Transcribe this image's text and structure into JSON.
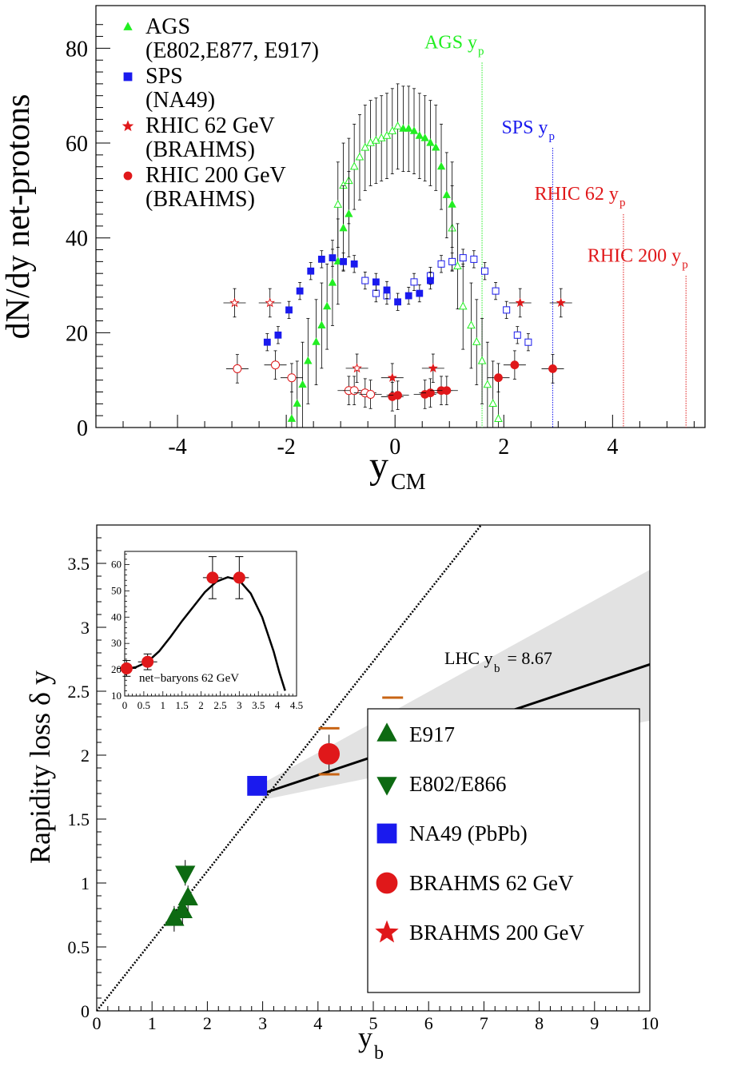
{
  "chart_data": [
    {
      "type": "scatter",
      "title": "",
      "xlabel": "y",
      "xlabel_sub": "CM",
      "ylabel": "dN/dy net-protons",
      "xlim": [
        -5.5,
        5.7
      ],
      "ylim": [
        0,
        89
      ],
      "xticks": [
        -4,
        -2,
        0,
        2,
        4
      ],
      "yticks": [
        0,
        20,
        40,
        60,
        80
      ],
      "grid": false,
      "legend_position": "top-left",
      "legend": [
        {
          "label": "AGS",
          "sub_label": "(E802,E877, E917)",
          "color": "#22ee22",
          "marker": "triangle"
        },
        {
          "label": "SPS",
          "sub_label": "(NA49)",
          "color": "#1a1aee",
          "marker": "square"
        },
        {
          "label": "RHIC 62 GeV",
          "sub_label": "(BRAHMS)",
          "color": "#e0181a",
          "marker": "star"
        },
        {
          "label": "RHIC 200 GeV",
          "sub_label": "(BRAHMS)",
          "color": "#e0181a",
          "marker": "circle"
        }
      ],
      "beam_lines": [
        {
          "label": "AGS y",
          "sub": "p",
          "x": 1.6,
          "color": "#22ee22",
          "label_y": 80
        },
        {
          "label": "SPS y",
          "sub": "p",
          "x": 2.9,
          "color": "#1a1aee",
          "label_y": 62
        },
        {
          "label": "RHIC 62 y",
          "sub": "p",
          "x": 4.2,
          "color": "#e0181a",
          "label_y": 48
        },
        {
          "label": "RHIC 200 y",
          "sub": "p",
          "x": 5.35,
          "color": "#e0181a",
          "label_y": 35
        }
      ],
      "series": [
        {
          "name": "AGS",
          "color": "#22ee22",
          "marker": "triangle",
          "filled": [
            [
              -1.9,
              1.8
            ],
            [
              -1.8,
              5
            ],
            [
              -1.7,
              9
            ],
            [
              -1.6,
              14
            ],
            [
              -1.45,
              18
            ],
            [
              -1.35,
              21.5
            ],
            [
              -1.25,
              25.5
            ],
            [
              -1.15,
              30.5
            ],
            [
              -1.05,
              35
            ],
            [
              -0.95,
              42
            ],
            [
              -0.85,
              45
            ],
            [
              0.15,
              63
            ],
            [
              0.25,
              63
            ],
            [
              0.35,
              62.5
            ],
            [
              0.45,
              61.5
            ],
            [
              0.55,
              61
            ],
            [
              0.65,
              60
            ],
            [
              0.75,
              59
            ],
            [
              0.85,
              55
            ],
            [
              0.95,
              49
            ],
            [
              1.05,
              47
            ]
          ],
          "open": [
            [
              -1.05,
              47
            ],
            [
              -0.95,
              51
            ],
            [
              -0.85,
              52
            ],
            [
              -0.75,
              55
            ],
            [
              -0.65,
              57
            ],
            [
              -0.55,
              59
            ],
            [
              -0.45,
              60
            ],
            [
              -0.35,
              60.5
            ],
            [
              -0.25,
              61
            ],
            [
              -0.15,
              61.5
            ],
            [
              -0.05,
              62.5
            ],
            [
              0.05,
              63.5
            ],
            [
              1.05,
              42
            ],
            [
              1.15,
              34
            ],
            [
              1.25,
              25.5
            ],
            [
              1.4,
              21.5
            ],
            [
              1.5,
              18
            ],
            [
              1.6,
              14
            ],
            [
              1.7,
              9
            ],
            [
              1.8,
              5
            ],
            [
              1.9,
              1.8
            ]
          ],
          "err": 9
        },
        {
          "name": "SPS",
          "color": "#1a1aee",
          "marker": "square",
          "filled": [
            [
              -2.35,
              18
            ],
            [
              -2.15,
              19.5
            ],
            [
              -1.95,
              24.8
            ],
            [
              -1.75,
              28.8
            ],
            [
              -1.55,
              33
            ],
            [
              -1.35,
              35.5
            ],
            [
              -1.15,
              35.8
            ],
            [
              -0.95,
              35
            ],
            [
              -0.75,
              34.5
            ],
            [
              -0.35,
              30.7
            ],
            [
              -0.15,
              29
            ],
            [
              0.05,
              26.5
            ],
            [
              0.25,
              27.8
            ],
            [
              0.45,
              28.3
            ],
            [
              0.65,
              31
            ]
          ],
          "open": [
            [
              -0.55,
              31
            ],
            [
              -0.35,
              28.3
            ],
            [
              -0.15,
              27.8
            ],
            [
              0.35,
              30.7
            ],
            [
              0.65,
              32
            ],
            [
              0.85,
              34.5
            ],
            [
              1.05,
              35
            ],
            [
              1.25,
              35.8
            ],
            [
              1.45,
              35.5
            ],
            [
              1.65,
              33
            ],
            [
              1.85,
              28.8
            ],
            [
              2.05,
              24.8
            ],
            [
              2.25,
              19.5
            ],
            [
              2.45,
              18
            ]
          ],
          "err": 1.8
        },
        {
          "name": "RHIC 62 GeV",
          "color": "#e0181a",
          "marker": "star",
          "filled": [
            [
              -0.05,
              10.5
            ],
            [
              0.7,
              12.5
            ],
            [
              2.3,
              26.3
            ],
            [
              3.05,
              26.3
            ]
          ],
          "open": [
            [
              -2.95,
              26.3
            ],
            [
              -2.3,
              26.3
            ],
            [
              -0.7,
              12.5
            ]
          ],
          "err": 3
        },
        {
          "name": "RHIC 200 GeV",
          "color": "#e0181a",
          "marker": "circle",
          "filled": [
            [
              -0.05,
              6.5
            ],
            [
              0.05,
              6.8
            ],
            [
              0.55,
              7
            ],
            [
              0.65,
              7.3
            ],
            [
              0.85,
              7.8
            ],
            [
              0.95,
              7.8
            ],
            [
              1.9,
              10.5
            ],
            [
              2.2,
              13.2
            ],
            [
              2.9,
              12.4
            ]
          ],
          "open": [
            [
              -2.9,
              12.4
            ],
            [
              -2.2,
              13.2
            ],
            [
              -1.9,
              10.5
            ],
            [
              -0.85,
              7.8
            ],
            [
              -0.75,
              7.8
            ],
            [
              -0.55,
              7.3
            ],
            [
              -0.45,
              7
            ]
          ],
          "err": 3
        }
      ]
    },
    {
      "type": "scatter",
      "title": "",
      "xlabel": "y",
      "xlabel_sub": "b",
      "ylabel": "Rapidity loss δ y",
      "xlim": [
        0,
        10
      ],
      "ylim": [
        0,
        3.8
      ],
      "xticks": [
        0,
        1,
        2,
        3,
        4,
        5,
        6,
        7,
        8,
        9,
        10
      ],
      "yticks": [
        0,
        0.5,
        1,
        1.5,
        2,
        2.5,
        3,
        3.5
      ],
      "ytick_labels": [
        "0",
        "0.5",
        "1",
        "1.5",
        "2",
        "2.5",
        "3",
        "3.5"
      ],
      "grid": false,
      "legend_position": "bottom-right",
      "annotation": {
        "text": "LHC y",
        "sub": "b",
        "suffix": " = 8.67"
      },
      "fit_line": {
        "x": [
          3.0,
          10.0
        ],
        "y": [
          1.7,
          2.71
        ]
      },
      "band_upper": {
        "x": [
          3.0,
          10.0
        ],
        "y": [
          1.78,
          3.45
        ]
      },
      "band_lower": {
        "x": [
          3.0,
          10.0
        ],
        "y": [
          1.65,
          2.27
        ]
      },
      "dotted_line": {
        "x": [
          0,
          6.95
        ],
        "y": [
          0,
          3.8
        ]
      },
      "series": [
        {
          "name": "E917",
          "color": "#0d6a12",
          "marker": "triangle-up",
          "points": [
            [
              1.4,
              0.72
            ],
            [
              1.55,
              0.78
            ],
            [
              1.65,
              0.88
            ]
          ]
        },
        {
          "name": "E802/E866",
          "color": "#0d6a12",
          "marker": "triangle-down",
          "points": [
            [
              1.6,
              1.08
            ]
          ]
        },
        {
          "name": "NA49 (PbPb)",
          "color": "#1a1aee",
          "marker": "square",
          "points": [
            [
              2.9,
              1.76
            ]
          ]
        },
        {
          "name": "BRAHMS 62 GeV",
          "color": "#e0181a",
          "marker": "circle",
          "points": [
            [
              4.2,
              2.01
            ]
          ],
          "syst": [
            1.85,
            2.21
          ]
        },
        {
          "name": "BRAHMS 200 GeV",
          "color": "#e0181a",
          "marker": "star",
          "points": [
            [
              5.35,
              2.06
            ]
          ],
          "syst": [
            1.7,
            2.45
          ]
        }
      ],
      "inset": {
        "label": "net−baryons 62 GeV",
        "xlim": [
          0,
          4.5
        ],
        "ylim": [
          10,
          65
        ],
        "xticks": [
          0,
          0.5,
          1,
          1.5,
          2,
          2.5,
          3,
          3.5,
          4,
          4.5
        ],
        "xtick_labels": [
          "0",
          "0.5",
          "1",
          "1.5",
          "2",
          "2.5",
          "3",
          "3.5",
          "4",
          "4.5"
        ],
        "yticks": [
          10,
          20,
          30,
          40,
          50,
          60
        ],
        "points": [
          [
            0.05,
            20.5
          ],
          [
            0.6,
            23
          ],
          [
            2.3,
            55
          ],
          [
            3.0,
            55
          ]
        ],
        "errors": [
          3,
          3,
          8,
          8
        ],
        "curve_x": [
          0,
          0.3,
          0.6,
          0.9,
          1.2,
          1.5,
          1.8,
          2.1,
          2.4,
          2.7,
          3.0,
          3.3,
          3.6,
          3.9,
          4.05,
          4.2
        ],
        "curve_y": [
          20.2,
          21,
          23,
          27,
          32.5,
          38.5,
          44,
          49.5,
          53.5,
          55.2,
          54,
          49,
          40,
          27,
          19,
          12
        ]
      }
    }
  ]
}
